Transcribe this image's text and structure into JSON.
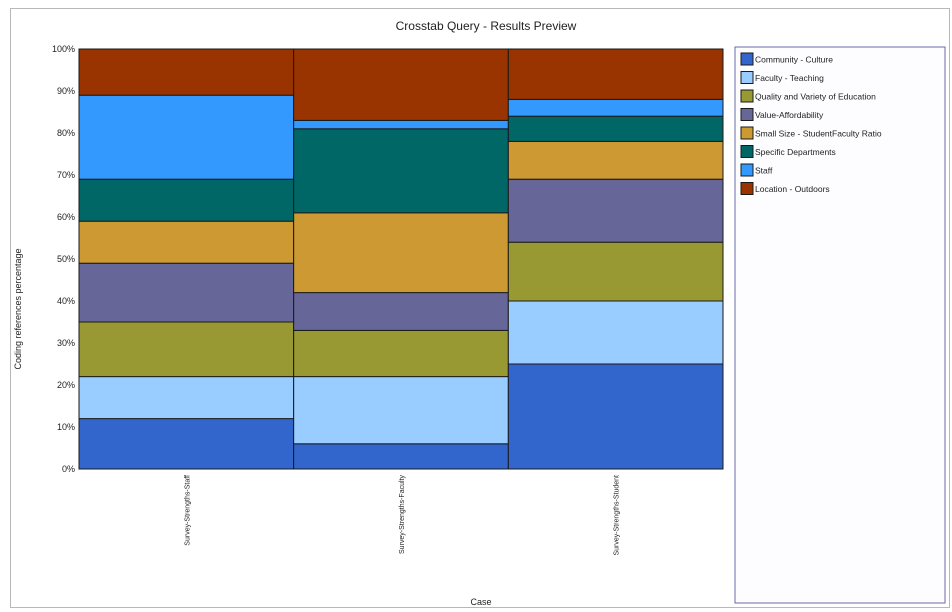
{
  "chart_data": {
    "type": "bar",
    "stacked": true,
    "title": "Crosstab Query - Results Preview",
    "xlabel": "Case",
    "ylabel": "Coding references percentage",
    "ylim": [
      0,
      100
    ],
    "yticks": [
      "0%",
      "10%",
      "20%",
      "30%",
      "40%",
      "50%",
      "60%",
      "70%",
      "80%",
      "90%",
      "100%"
    ],
    "categories": [
      "Survey-Strengths-Staff",
      "Survey-Strengths-Faculty",
      "Survey-Strengths-Student"
    ],
    "series": [
      {
        "name": "Community - Culture",
        "color": "#3366cc",
        "values": [
          12,
          6,
          25
        ]
      },
      {
        "name": "Faculty - Teaching",
        "color": "#99ccff",
        "values": [
          10,
          16,
          15
        ]
      },
      {
        "name": "Quality and Variety of Education",
        "color": "#999933",
        "values": [
          13,
          11,
          14
        ]
      },
      {
        "name": "Value-Affordability",
        "color": "#666699",
        "values": [
          14,
          9,
          15
        ]
      },
      {
        "name": "Small Size - StudentFaculty Ratio",
        "color": "#cc9933",
        "values": [
          10,
          19,
          9
        ]
      },
      {
        "name": "Specific Departments",
        "color": "#006666",
        "values": [
          10,
          20,
          6
        ]
      },
      {
        "name": "Staff",
        "color": "#3399ff",
        "values": [
          20,
          2,
          4
        ]
      },
      {
        "name": "Location - Outdoors",
        "color": "#993300",
        "values": [
          11,
          17,
          12
        ]
      }
    ],
    "legend_position": "right"
  }
}
